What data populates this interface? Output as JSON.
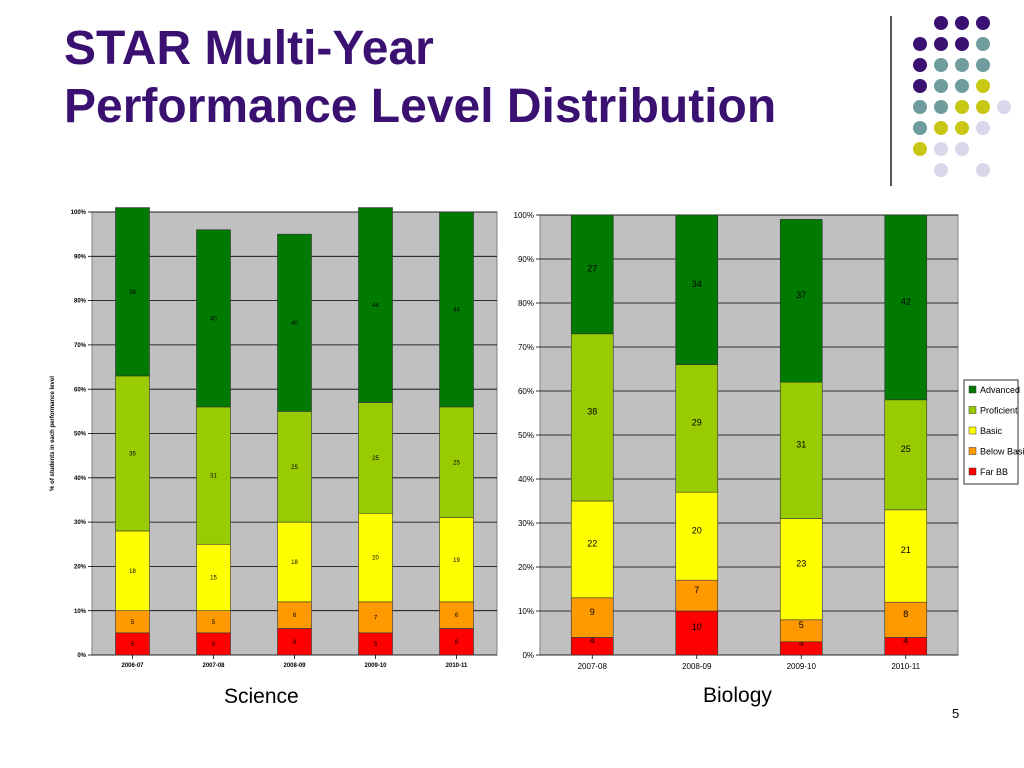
{
  "slide": {
    "title_line1": "STAR Multi-Year",
    "title_line2": "Performance Level Distribution",
    "page_number": "5"
  },
  "colors": {
    "title": "#3a1070",
    "Advanced": "#007a00",
    "Proficient": "#99cc00",
    "Basic": "#ffff00",
    "Below Basic": "#ff9900",
    "Far BB": "#ff0000",
    "plot_bg": "#c0c0c0",
    "dot_purple": "#3a1070",
    "dot_teal": "#6f9c9c",
    "dot_olive": "#c8c814",
    "dot_lavender": "#d8d8ea"
  },
  "chart_data": [
    {
      "type": "bar",
      "stacked": true,
      "normalized": true,
      "caption": "Science",
      "ylabel": "% of students in each performance level",
      "ylim": [
        0,
        100
      ],
      "y_ticks": [
        "0%",
        "10%",
        "20%",
        "30%",
        "40%",
        "50%",
        "60%",
        "70%",
        "80%",
        "90%",
        "100%"
      ],
      "categories": [
        "2006-07",
        "2007-08",
        "2008-09",
        "2009-10",
        "2010-11"
      ],
      "series": [
        {
          "name": "Far BB",
          "values": [
            5,
            5,
            6,
            5,
            6
          ]
        },
        {
          "name": "Below Basic",
          "values": [
            5,
            5,
            6,
            7,
            6
          ]
        },
        {
          "name": "Basic",
          "values": [
            18,
            15,
            18,
            20,
            19
          ]
        },
        {
          "name": "Proficient",
          "values": [
            35,
            31,
            25,
            25,
            25
          ]
        },
        {
          "name": "Advanced",
          "values": [
            38,
            40,
            40,
            44,
            44
          ]
        }
      ],
      "legend": null
    },
    {
      "type": "bar",
      "stacked": true,
      "normalized": true,
      "caption": "Biology",
      "ylabel": "",
      "ylim": [
        0,
        100
      ],
      "y_ticks": [
        "0%",
        "10%",
        "20%",
        "30%",
        "40%",
        "50%",
        "60%",
        "70%",
        "80%",
        "90%",
        "100%"
      ],
      "categories": [
        "2007-08",
        "2008-09",
        "2009-10",
        "2010-11"
      ],
      "series": [
        {
          "name": "Far BB",
          "values": [
            4,
            10,
            3,
            4
          ]
        },
        {
          "name": "Below Basic",
          "values": [
            9,
            7,
            5,
            8
          ]
        },
        {
          "name": "Basic",
          "values": [
            22,
            20,
            23,
            21
          ]
        },
        {
          "name": "Proficient",
          "values": [
            38,
            29,
            31,
            25
          ]
        },
        {
          "name": "Advanced",
          "values": [
            27,
            34,
            37,
            42
          ]
        }
      ],
      "legend": {
        "placement": "right",
        "entries": [
          "Advanced",
          "Proficient",
          "Basic",
          "Below Basic",
          "Far BB"
        ]
      }
    }
  ]
}
